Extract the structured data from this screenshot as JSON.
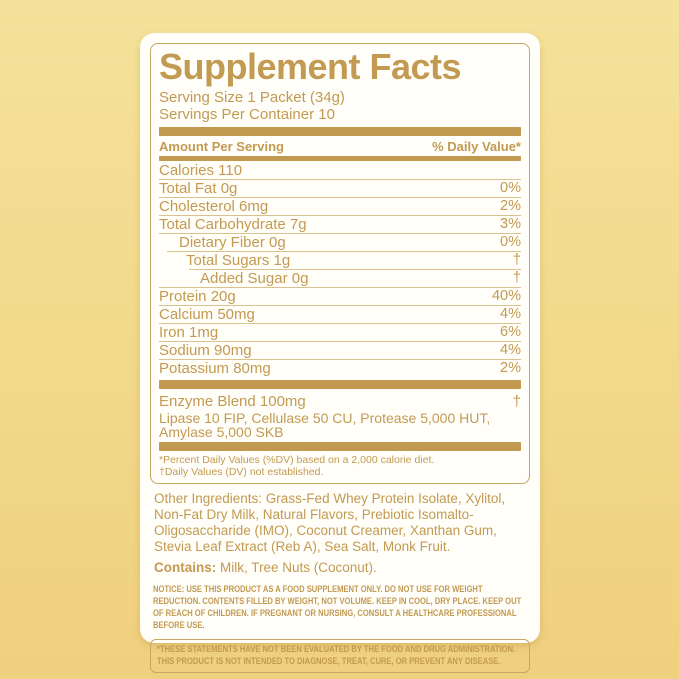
{
  "colors": {
    "bg_top": "#F5E29A",
    "bg_bottom": "#EFD07E",
    "card": "#FFFEF9",
    "gold": "#C29A52",
    "bar": "#C19950",
    "hairline": "#D9C190",
    "panel_border": "#C8A764"
  },
  "panel": {
    "title": "Supplement Facts",
    "serving_size": "Serving Size 1 Packet (34g)",
    "servings_per_container": "Servings Per Container 10",
    "amount_header": "Amount Per Serving",
    "dv_header": "% Daily Value*",
    "rows": [
      {
        "label": "Calories 110",
        "value": "",
        "indent": 0,
        "sep": null
      },
      {
        "label": "Total Fat 0g",
        "value": "0%",
        "indent": 0,
        "sep": 0
      },
      {
        "label": "Cholesterol 6mg",
        "value": "2%",
        "indent": 0,
        "sep": 0
      },
      {
        "label": "Total Carbohydrate 7g",
        "value": "3%",
        "indent": 0,
        "sep": 0
      },
      {
        "label": "Dietary Fiber 0g",
        "value": "0%",
        "indent": 20,
        "sep": 0
      },
      {
        "label": "Total Sugars 1g",
        "value": "†",
        "indent": 27,
        "sep": 8
      },
      {
        "label": "Added Sugar 0g",
        "value": "†",
        "indent": 41,
        "sep": 30
      },
      {
        "label": "Protein 20g",
        "value": "40%",
        "indent": 0,
        "sep": 0
      },
      {
        "label": "Calcium 50mg",
        "value": "4%",
        "indent": 0,
        "sep": 0
      },
      {
        "label": "Iron 1mg",
        "value": "6%",
        "indent": 0,
        "sep": 0
      },
      {
        "label": "Sodium 90mg",
        "value": "4%",
        "indent": 0,
        "sep": 0
      },
      {
        "label": "Potassium 80mg",
        "value": "2%",
        "indent": 0,
        "sep": 0
      }
    ],
    "enzyme": {
      "label": "Enzyme Blend 100mg",
      "value": "†",
      "description": "Lipase 10 FIP, Cellulase 50 CU, Protease 5,000 HUT, Amylase 5,000 SKB"
    },
    "footnotes": [
      "*Percent Daily Values (%DV) based on a 2,000 calorie diet.",
      "†Daily Values (DV) not established."
    ]
  },
  "other_ingredients": "Other Ingredients: Grass-Fed Whey Protein Isolate, Xylitol, Non-Fat Dry Milk, Natural Flavors, Prebiotic Isomalto-Oligosaccharide (IMO), Coconut Creamer, Xanthan Gum, Stevia Leaf Extract (Reb A), Sea Salt, Monk Fruit.",
  "contains": {
    "label": "Contains:",
    "text": " Milk, Tree Nuts (Coconut)."
  },
  "notice": "NOTICE: USE THIS PRODUCT AS A FOOD SUPPLEMENT ONLY. DO NOT USE FOR WEIGHT REDUCTION. CONTENTS FILLED BY WEIGHT, NOT VOLUME. KEEP IN COOL, DRY PLACE. KEEP OUT OF REACH OF CHILDREN. IF PREGNANT OR NURSING, CONSULT A HEALTHCARE PROFESSIONAL BEFORE USE.",
  "disclaimer": "*THESE STATEMENTS HAVE NOT BEEN EVALUATED BY THE FOOD AND DRUG ADMINISTRATION. THIS PRODUCT IS NOT INTENDED TO DIAGNOSE, TREAT, CURE, OR PREVENT ANY DISEASE."
}
